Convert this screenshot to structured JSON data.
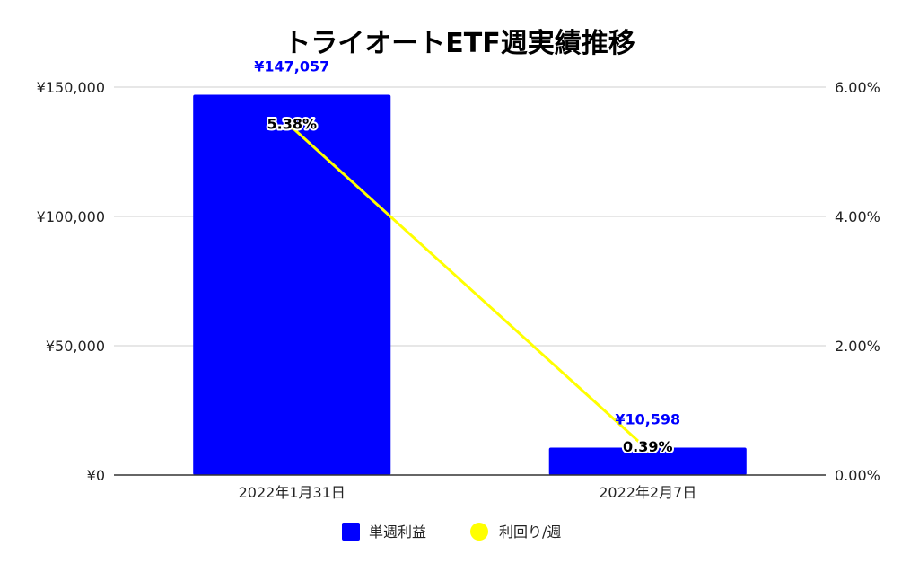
{
  "chart_data": {
    "type": "bar",
    "title": "トライオートETF週実績推移",
    "categories": [
      "2022年1月31日",
      "2022年2月7日"
    ],
    "series": [
      {
        "name": "単週利益",
        "type": "bar",
        "axis": "left",
        "values": [
          147057,
          10598
        ],
        "labels": [
          "¥147,057",
          "¥10,598"
        ],
        "color": "#0000ff"
      },
      {
        "name": "利回り/週",
        "type": "line",
        "axis": "right",
        "values": [
          5.38,
          0.39
        ],
        "labels": [
          "5.38%",
          "0.39%"
        ],
        "color": "#ffff00"
      }
    ],
    "y_left": {
      "ylim": [
        0,
        150000
      ],
      "ticks": [
        0,
        50000,
        100000,
        150000
      ],
      "tick_labels": [
        "¥0",
        "¥50,000",
        "¥100,000",
        "¥150,000"
      ]
    },
    "y_right": {
      "ylim": [
        0,
        6
      ],
      "ticks": [
        0,
        2,
        4,
        6
      ],
      "tick_labels": [
        "0.00%",
        "2.00%",
        "4.00%",
        "6.00%"
      ]
    },
    "grid": true,
    "legend": "bottom"
  }
}
